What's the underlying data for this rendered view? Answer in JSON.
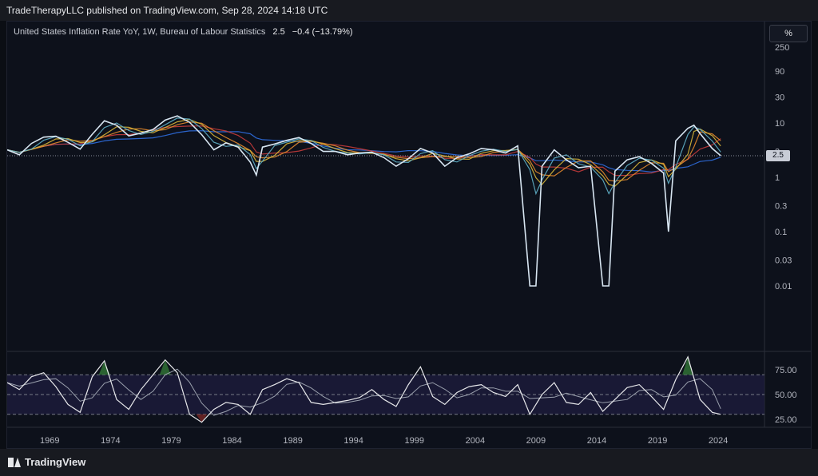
{
  "header": {
    "publish_text": "TradeTherapyLLC published on TradingView.com, Sep 28, 2024 14:18 UTC"
  },
  "legend": {
    "title": "United States Inflation Rate YoY, 1W, Bureau of Labour Statistics",
    "last_value": "2.5",
    "change": "−0.4 (−13.79%)"
  },
  "scale_button": {
    "label": "%"
  },
  "last_value_badge": "2.5",
  "footer": {
    "brand": "TradingView"
  },
  "colors": {
    "price_line": "#d8e6f2",
    "ma_cyan": "#5fb0c8",
    "ma_orange": "#e38a2d",
    "ma_yellow": "#d7b63a",
    "ma_red": "#c43b3b",
    "ma_blue": "#2f6ee0",
    "osc_band": "#1c1b3a",
    "osc_overbought": "#2e6b34",
    "osc_oversold": "#6b2323"
  },
  "chart_data": [
    {
      "type": "line",
      "title": "United States Inflation Rate YoY, 1W, Bureau of Labour Statistics",
      "y_scale": "log",
      "y_unit": "%",
      "y_ticks": [
        "250",
        "90",
        "30",
        "10",
        "3",
        "1",
        "0.3",
        "0.1",
        "0.03",
        "0.01"
      ],
      "x_ticks": [
        "1969",
        "1974",
        "1979",
        "1984",
        "1989",
        "1994",
        "1999",
        "2004",
        "2009",
        "2014",
        "2019",
        "2024"
      ],
      "series": [
        {
          "x": [
            1966,
            1967,
            1968,
            1969,
            1970,
            1971,
            1972,
            1973,
            1974,
            1975,
            1976,
            1977,
            1978,
            1979,
            1980,
            1981,
            1982,
            1983,
            1984,
            1985,
            1986,
            1986.5,
            1987,
            1988,
            1989,
            1990,
            1991,
            1992,
            1993,
            1994,
            1995,
            1996,
            1997,
            1998,
            1999,
            2000,
            2001,
            2002,
            2003,
            2004,
            2005,
            2006,
            2007,
            2008,
            2009,
            2009.5,
            2010,
            2011,
            2012,
            2013,
            2014,
            2015,
            2015.5,
            2016,
            2017,
            2018,
            2019,
            2020,
            2020.4,
            2021,
            2022,
            2022.5,
            2023,
            2024,
            2024.7
          ],
          "values": [
            3.2,
            2.6,
            4.2,
            5.5,
            5.7,
            4.4,
            3.3,
            6.2,
            11.0,
            9.1,
            5.8,
            6.5,
            7.6,
            11.3,
            13.5,
            10.3,
            6.1,
            3.2,
            4.3,
            3.6,
            1.9,
            1.1,
            3.6,
            4.1,
            4.8,
            5.4,
            4.2,
            3.0,
            3.0,
            2.6,
            2.8,
            2.9,
            2.3,
            1.6,
            2.2,
            3.4,
            2.8,
            1.6,
            2.3,
            2.7,
            3.4,
            3.2,
            2.8,
            3.8,
            0.01,
            0.01,
            1.6,
            3.2,
            2.1,
            1.5,
            1.6,
            0.01,
            0.01,
            1.3,
            2.1,
            2.4,
            1.8,
            1.2,
            0.1,
            4.7,
            8.0,
            9.1,
            6.4,
            3.4,
            2.5
          ]
        }
      ]
    },
    {
      "type": "line",
      "title": "",
      "y_ticks": [
        "75.00",
        "50.00",
        "25.00"
      ],
      "band": [
        30,
        70
      ],
      "series": [
        {
          "x": [
            1966,
            1967,
            1968,
            1969,
            1970,
            1971,
            1972,
            1973,
            1974,
            1975,
            1976,
            1977,
            1978,
            1979,
            1980,
            1981,
            1982,
            1983,
            1984,
            1985,
            1986,
            1987,
            1988,
            1989,
            1990,
            1991,
            1992,
            1993,
            1994,
            1995,
            1996,
            1997,
            1998,
            1999,
            2000,
            2001,
            2002,
            2003,
            2004,
            2005,
            2006,
            2007,
            2008,
            2009,
            2010,
            2011,
            2012,
            2013,
            2014,
            2015,
            2016,
            2017,
            2018,
            2019,
            2020,
            2021,
            2022,
            2023,
            2024,
            2024.7
          ],
          "values": [
            62,
            55,
            68,
            72,
            58,
            40,
            32,
            68,
            84,
            45,
            35,
            55,
            70,
            85,
            72,
            30,
            22,
            35,
            42,
            40,
            30,
            55,
            60,
            66,
            62,
            42,
            40,
            42,
            44,
            47,
            55,
            45,
            38,
            60,
            78,
            48,
            40,
            52,
            58,
            60,
            52,
            48,
            60,
            30,
            50,
            62,
            42,
            40,
            52,
            33,
            45,
            57,
            60,
            48,
            35,
            65,
            88,
            45,
            32,
            30
          ]
        }
      ]
    }
  ]
}
